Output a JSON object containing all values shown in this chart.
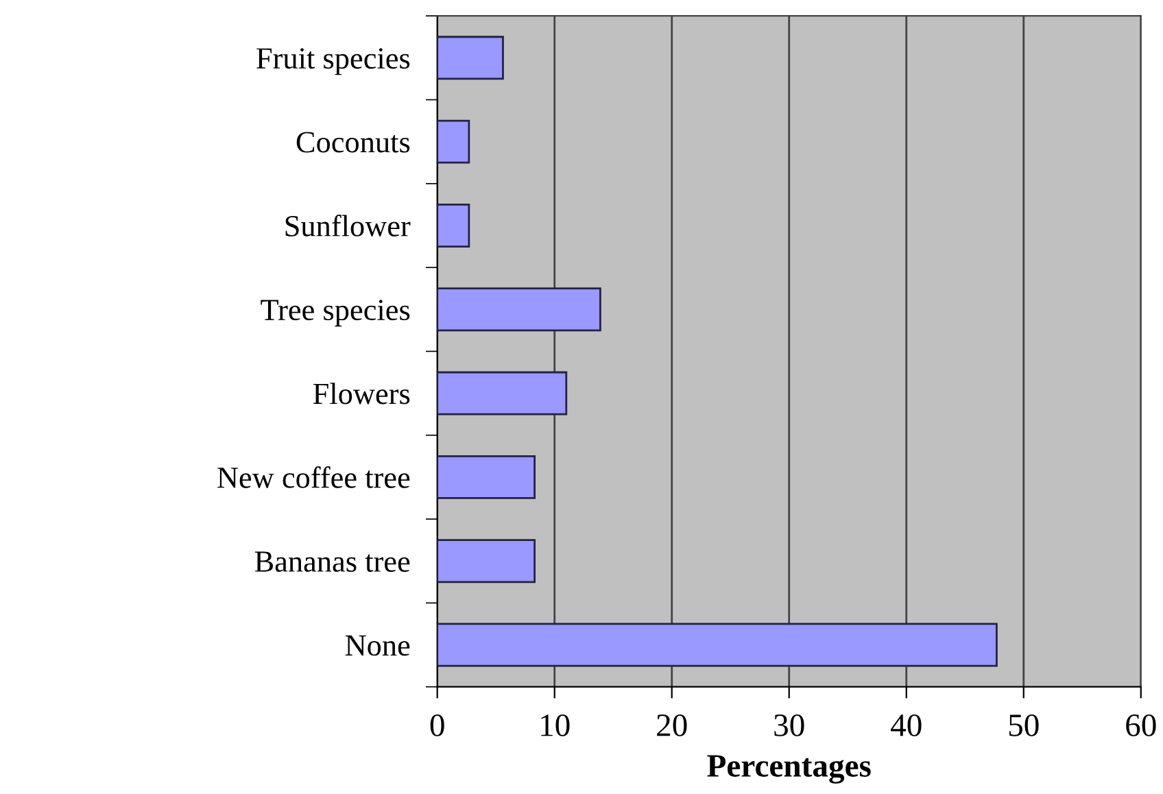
{
  "chart_data": {
    "type": "bar",
    "orientation": "horizontal",
    "xlabel": "Percentages",
    "categories": [
      "Fruit species",
      "Coconuts",
      "Sunflower",
      "Tree species",
      "Flowers",
      "New coffee tree",
      "Bananas tree",
      "None"
    ],
    "values": [
      5.6,
      2.7,
      2.7,
      13.9,
      11.0,
      8.3,
      8.3,
      47.7
    ],
    "color": "#9999ff",
    "xlim": [
      0,
      60
    ],
    "xticks": [
      0,
      10,
      20,
      30,
      40,
      50,
      60
    ],
    "grid": "x",
    "legend": false
  }
}
